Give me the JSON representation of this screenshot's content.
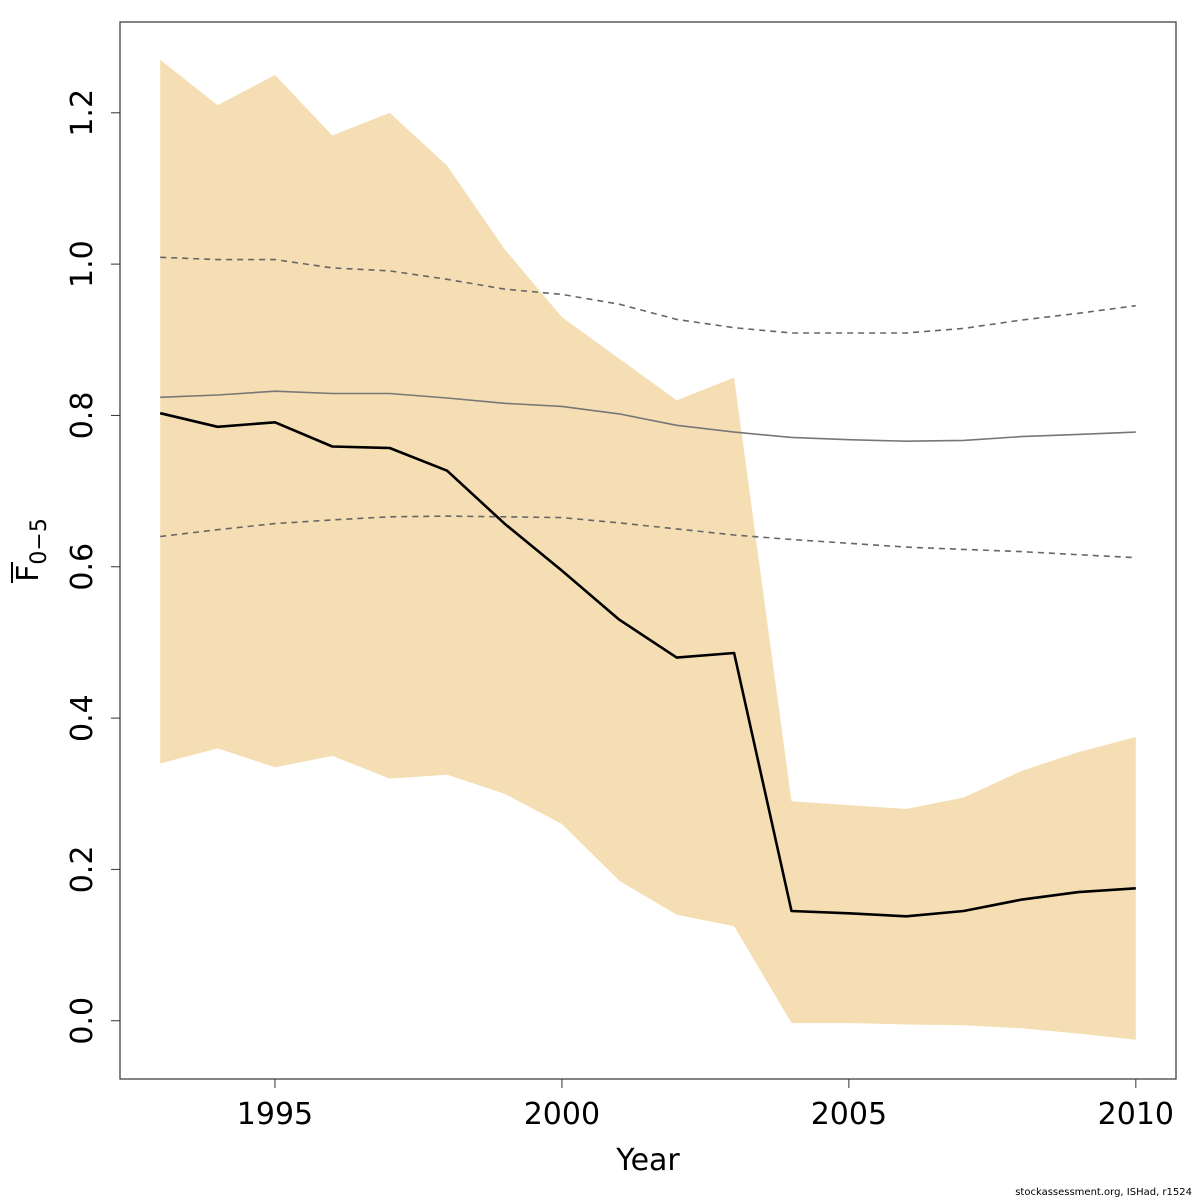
{
  "chart_data": {
    "type": "line",
    "xlabel": "Year",
    "ylabel": "F",
    "ylabel_subscript": "0−5",
    "x": [
      1993,
      1994,
      1995,
      1996,
      1997,
      1998,
      1999,
      2000,
      2001,
      2002,
      2003,
      2004,
      2005,
      2006,
      2007,
      2008,
      2009,
      2010
    ],
    "xlim": [
      1992.3,
      2010.7
    ],
    "ylim": [
      -0.077,
      1.32
    ],
    "x_ticks": [
      1995,
      2000,
      2005,
      2010
    ],
    "x_tick_labels": [
      "1995",
      "2000",
      "2005",
      "2010"
    ],
    "y_ticks": [
      0.0,
      0.2,
      0.4,
      0.6,
      0.8,
      1.0,
      1.2
    ],
    "y_tick_labels": [
      "0.0",
      "0.2",
      "0.4",
      "0.6",
      "0.8",
      "1.0",
      "1.2"
    ],
    "grid": false,
    "band": {
      "upper": [
        1.27,
        1.21,
        1.25,
        1.17,
        1.2,
        1.13,
        1.02,
        0.93,
        0.875,
        0.82,
        0.85,
        0.29,
        0.285,
        0.28,
        0.295,
        0.33,
        0.355,
        0.375
      ],
      "lower": [
        0.34,
        0.36,
        0.335,
        0.35,
        0.32,
        0.325,
        0.3,
        0.26,
        0.185,
        0.14,
        0.125,
        -0.003,
        -0.003,
        -0.005,
        -0.006,
        -0.01,
        -0.017,
        -0.025
      ],
      "color": "#f5deb3"
    },
    "series": [
      {
        "values": [
          0.803,
          0.785,
          0.791,
          0.759,
          0.757,
          0.727,
          0.657,
          0.595,
          0.53,
          0.48,
          0.486,
          0.145,
          0.142,
          0.138,
          0.145,
          0.16,
          0.17,
          0.175
        ],
        "color": "#000000",
        "style": "solid"
      },
      {
        "values": [
          0.824,
          0.827,
          0.832,
          0.829,
          0.829,
          0.823,
          0.816,
          0.812,
          0.802,
          0.787,
          0.778,
          0.771,
          0.768,
          0.766,
          0.767,
          0.772,
          0.775,
          0.778
        ],
        "color": "#777777",
        "style": "solid"
      },
      {
        "values": [
          1.009,
          1.006,
          1.006,
          0.995,
          0.991,
          0.98,
          0.967,
          0.96,
          0.947,
          0.927,
          0.916,
          0.909,
          0.909,
          0.909,
          0.915,
          0.926,
          0.935,
          0.945
        ],
        "color": "#666666",
        "style": "dashed"
      },
      {
        "values": [
          0.64,
          0.649,
          0.657,
          0.662,
          0.666,
          0.667,
          0.666,
          0.665,
          0.658,
          0.65,
          0.642,
          0.636,
          0.631,
          0.626,
          0.623,
          0.62,
          0.616,
          0.612
        ],
        "color": "#666666",
        "style": "dashed"
      }
    ]
  },
  "footer": "stockassessment.org, ISHad, r1524"
}
